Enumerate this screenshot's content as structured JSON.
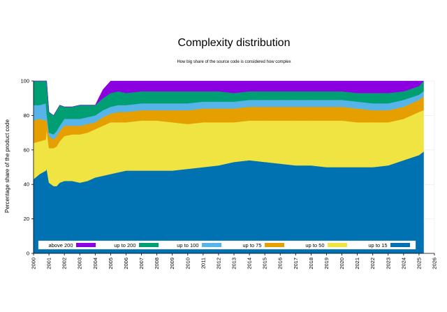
{
  "chart_data": {
    "type": "area",
    "stacked": true,
    "title": "Complexity distribution",
    "subtitle": "How big share of the source code is considered how complex",
    "xlabel": "",
    "ylabel": "Percentage share of the product code",
    "xlim": [
      2000,
      2026
    ],
    "ylim": [
      0,
      100
    ],
    "x_ticks": [
      "2000",
      "2001",
      "2002",
      "2003",
      "2004",
      "2005",
      "2006",
      "2007",
      "2008",
      "2009",
      "2010",
      "2011",
      "2012",
      "2013",
      "2014",
      "2015",
      "2016",
      "2017",
      "2018",
      "2019",
      "2020",
      "2021",
      "2022",
      "2023",
      "2024",
      "2025",
      "2026"
    ],
    "y_ticks": [
      "0",
      "20",
      "40",
      "60",
      "80",
      "100"
    ],
    "legend_position": "bottom",
    "x": [
      2000.0,
      2000.4,
      2000.8,
      2000.85,
      2001.0,
      2001.3,
      2001.5,
      2001.7,
      2002.0,
      2002.5,
      2003.0,
      2003.5,
      2004.0,
      2004.5,
      2005.0,
      2005.5,
      2006.0,
      2007.0,
      2008.0,
      2009.0,
      2010.0,
      2011.0,
      2012.0,
      2013.0,
      2014.0,
      2015.0,
      2016.0,
      2017.0,
      2018.0,
      2019.0,
      2020.0,
      2021.0,
      2022.0,
      2023.0,
      2024.0,
      2025.0,
      2025.3
    ],
    "series": [
      {
        "name": "up to 15",
        "color": "#0072b2",
        "values": [
          43,
          46,
          48,
          49,
          41,
          39,
          39,
          41,
          42,
          42,
          41,
          42,
          44,
          45,
          46,
          47,
          48,
          48,
          48,
          48,
          49,
          50,
          51,
          53,
          54,
          53,
          52,
          51,
          51,
          50,
          50,
          50,
          50,
          51,
          54,
          57,
          59
        ]
      },
      {
        "name": "up to 50",
        "color": "#f0e442",
        "values": [
          21,
          19,
          18,
          23,
          20,
          22,
          23,
          24,
          26,
          27,
          28,
          28,
          28,
          29,
          30,
          29,
          28,
          29,
          29,
          28,
          26,
          26,
          25,
          23,
          23,
          24,
          25,
          26,
          26,
          27,
          27,
          26,
          26,
          25,
          24,
          25,
          24
        ]
      },
      {
        "name": "up to 75",
        "color": "#e69f00",
        "values": [
          13,
          13,
          11,
          6,
          7,
          5,
          6,
          6,
          6,
          5,
          5,
          5,
          4,
          5,
          5,
          6,
          6,
          6,
          6,
          7,
          8,
          8,
          8,
          8,
          8,
          8,
          8,
          8,
          8,
          8,
          8,
          8,
          7,
          7,
          7,
          7,
          8
        ]
      },
      {
        "name": "up to 100",
        "color": "#56b4e9",
        "values": [
          9,
          8,
          10,
          3,
          2,
          3,
          3,
          3,
          4,
          4,
          4,
          4,
          4,
          4,
          4,
          4,
          4,
          4,
          4,
          4,
          4,
          4,
          4,
          4,
          4,
          4,
          4,
          4,
          4,
          4,
          4,
          4,
          4,
          4,
          4,
          3,
          3
        ]
      },
      {
        "name": "up to 200",
        "color": "#009e73",
        "values": [
          14,
          14,
          13,
          19,
          12,
          11,
          12,
          12,
          7,
          7,
          8,
          7,
          6,
          7,
          8,
          8,
          7,
          7,
          7,
          7,
          7,
          6,
          6,
          5,
          5,
          5,
          5,
          5,
          5,
          5,
          5,
          5,
          6,
          6,
          5,
          5,
          6
        ]
      },
      {
        "name": "above 200",
        "color": "#8a00e0",
        "values": [
          0,
          0,
          0,
          0,
          0,
          0,
          0,
          0,
          0,
          0,
          0,
          0,
          0,
          5,
          7,
          6,
          7,
          6,
          6,
          6,
          6,
          6,
          6,
          7,
          6,
          6,
          6,
          6,
          6,
          6,
          6,
          7,
          7,
          7,
          6,
          3,
          0
        ]
      }
    ],
    "legend_order": [
      "above 200",
      "up to 200",
      "up to 100",
      "up to 75",
      "up to 50",
      "up to 15"
    ]
  }
}
